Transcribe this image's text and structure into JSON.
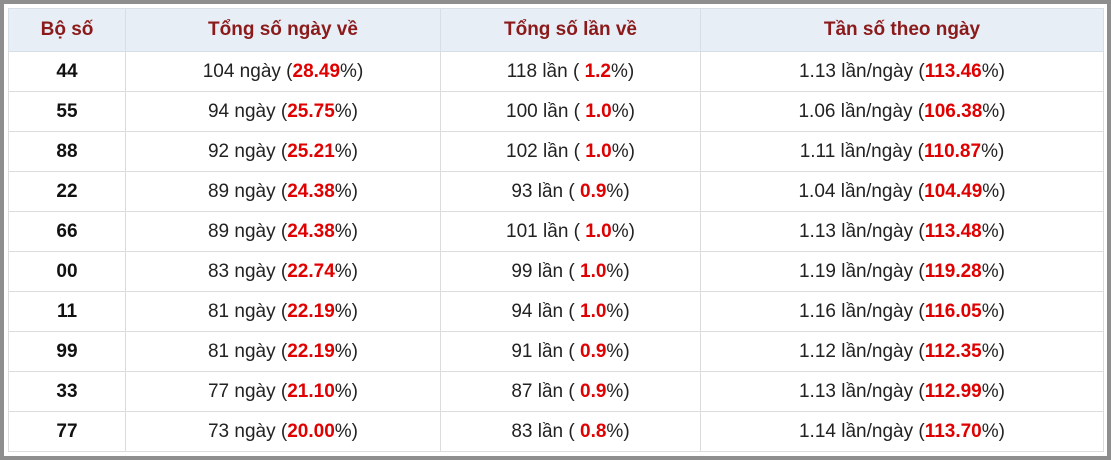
{
  "table": {
    "header": [
      "Bộ số",
      "Tổng số ngày về",
      "Tổng số lần về",
      "Tần số theo ngày"
    ],
    "rows": [
      [
        "44",
        [
          "104 ngày (",
          "28.49",
          "%)"
        ],
        [
          "118 lần ( ",
          "1.2",
          "%)"
        ],
        [
          "1.13 lần/ngày (",
          "113.46",
          "%)"
        ]
      ],
      [
        "55",
        [
          "94 ngày (",
          "25.75",
          "%)"
        ],
        [
          "100 lần ( ",
          "1.0",
          "%)"
        ],
        [
          "1.06 lần/ngày (",
          "106.38",
          "%)"
        ]
      ],
      [
        "88",
        [
          "92 ngày (",
          "25.21",
          "%)"
        ],
        [
          "102 lần ( ",
          "1.0",
          "%)"
        ],
        [
          "1.11 lần/ngày (",
          "110.87",
          "%)"
        ]
      ],
      [
        "22",
        [
          "89 ngày (",
          "24.38",
          "%)"
        ],
        [
          "93 lần ( ",
          "0.9",
          "%)"
        ],
        [
          "1.04 lần/ngày (",
          "104.49",
          "%)"
        ]
      ],
      [
        "66",
        [
          "89 ngày (",
          "24.38",
          "%)"
        ],
        [
          "101 lần ( ",
          "1.0",
          "%)"
        ],
        [
          "1.13 lần/ngày (",
          "113.48",
          "%)"
        ]
      ],
      [
        "00",
        [
          "83 ngày (",
          "22.74",
          "%)"
        ],
        [
          "99 lần ( ",
          "1.0",
          "%)"
        ],
        [
          "1.19 lần/ngày (",
          "119.28",
          "%)"
        ]
      ],
      [
        "11",
        [
          "81 ngày (",
          "22.19",
          "%)"
        ],
        [
          "94 lần ( ",
          "1.0",
          "%)"
        ],
        [
          "1.16 lần/ngày (",
          "116.05",
          "%)"
        ]
      ],
      [
        "99",
        [
          "81 ngày (",
          "22.19",
          "%)"
        ],
        [
          "91 lần ( ",
          "0.9",
          "%)"
        ],
        [
          "1.12 lần/ngày (",
          "112.35",
          "%)"
        ]
      ],
      [
        "33",
        [
          "77 ngày (",
          "21.10",
          "%)"
        ],
        [
          "87 lần ( ",
          "0.9",
          "%)"
        ],
        [
          "1.13 lần/ngày (",
          "112.99",
          "%)"
        ]
      ],
      [
        "77",
        [
          "73 ngày (",
          "20.00",
          "%)"
        ],
        [
          "83 lần ( ",
          "0.8",
          "%)"
        ],
        [
          "1.14 lần/ngày (",
          "113.70",
          "%)"
        ]
      ]
    ]
  }
}
